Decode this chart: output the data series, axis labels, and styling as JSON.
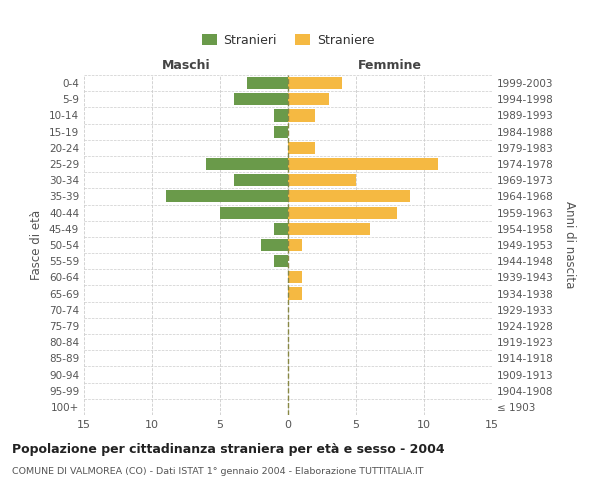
{
  "age_groups": [
    "100+",
    "95-99",
    "90-94",
    "85-89",
    "80-84",
    "75-79",
    "70-74",
    "65-69",
    "60-64",
    "55-59",
    "50-54",
    "45-49",
    "40-44",
    "35-39",
    "30-34",
    "25-29",
    "20-24",
    "15-19",
    "10-14",
    "5-9",
    "0-4"
  ],
  "birth_years": [
    "≤ 1903",
    "1904-1908",
    "1909-1913",
    "1914-1918",
    "1919-1923",
    "1924-1928",
    "1929-1933",
    "1934-1938",
    "1939-1943",
    "1944-1948",
    "1949-1953",
    "1954-1958",
    "1959-1963",
    "1964-1968",
    "1969-1973",
    "1974-1978",
    "1979-1983",
    "1984-1988",
    "1989-1993",
    "1994-1998",
    "1999-2003"
  ],
  "males": [
    0,
    0,
    0,
    0,
    0,
    0,
    0,
    0,
    0,
    1,
    2,
    1,
    5,
    9,
    4,
    6,
    0,
    1,
    1,
    4,
    3
  ],
  "females": [
    0,
    0,
    0,
    0,
    0,
    0,
    0,
    1,
    1,
    0,
    1,
    6,
    8,
    9,
    5,
    11,
    2,
    0,
    2,
    3,
    4
  ],
  "male_color": "#6a9a4a",
  "female_color": "#f5b942",
  "male_label": "Stranieri",
  "female_label": "Straniere",
  "title": "Popolazione per cittadinanza straniera per età e sesso - 2004",
  "subtitle": "COMUNE DI VALMOREA (CO) - Dati ISTAT 1° gennaio 2004 - Elaborazione TUTTITALIA.IT",
  "xlabel_left": "Maschi",
  "xlabel_right": "Femmine",
  "ylabel_left": "Fasce di età",
  "ylabel_right": "Anni di nascita",
  "xlim": 15,
  "background_color": "#ffffff",
  "grid_color": "#cccccc",
  "bar_height": 0.75
}
